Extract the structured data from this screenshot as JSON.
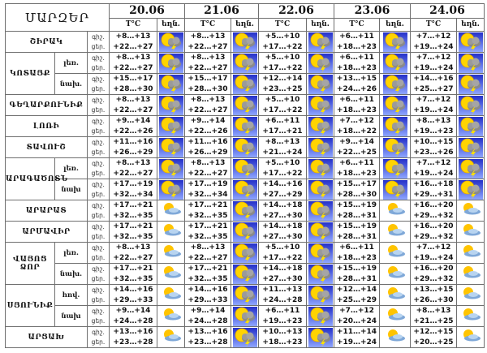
{
  "header": {
    "title": "ՄԱՐԶԵՐ",
    "temp_label": "T°C",
    "weather_label": "եղն.",
    "dates": [
      "20.06",
      "21.06",
      "22.06",
      "23.06",
      "24.06"
    ]
  },
  "time_labels": {
    "night": "գիշ.",
    "day": "ցեր."
  },
  "regions": [
    {
      "name": "ՇԻՐԱԿ",
      "subs": [
        {
          "label": "",
          "icons": [
            "storm",
            "storm",
            "storm",
            "storm",
            "storm"
          ],
          "days": [
            [
              "+8…+13",
              "+22…+27"
            ],
            [
              "+8…+13",
              "+22…+27"
            ],
            [
              "+5…+10",
              "+17…+22"
            ],
            [
              "+6…+11",
              "+18…+23"
            ],
            [
              "+7…+12",
              "+19…+24"
            ]
          ]
        }
      ]
    },
    {
      "name": "ԿՈՏԱՅՔ",
      "subs": [
        {
          "label": "լեռ.",
          "icons": [
            "storm",
            "storm",
            "storm",
            "storm",
            "storm"
          ],
          "days": [
            [
              "+8…+13",
              "+22…+27"
            ],
            [
              "+8…+13",
              "+22…+27"
            ],
            [
              "+5…+10",
              "+17…+22"
            ],
            [
              "+6…+11",
              "+18…+23"
            ],
            [
              "+7…+12",
              "+19…+24"
            ]
          ]
        },
        {
          "label": "նախ.",
          "icons": [
            "storm",
            "storm",
            "storm",
            "storm",
            "storm"
          ],
          "days": [
            [
              "+15…+17",
              "+28…+30"
            ],
            [
              "+15…+17",
              "+28…+30"
            ],
            [
              "+12…+14",
              "+23…+25"
            ],
            [
              "+13…+15",
              "+24…+26"
            ],
            [
              "+14…+16",
              "+25…+27"
            ]
          ]
        }
      ]
    },
    {
      "name": "ԳԵՂԱՐՔՈՒՆԻՔ",
      "subs": [
        {
          "label": "",
          "icons": [
            "storm",
            "storm",
            "storm",
            "storm",
            "storm"
          ],
          "days": [
            [
              "+8…+13",
              "+22…+27"
            ],
            [
              "+8…+13",
              "+22…+27"
            ],
            [
              "+5…+10",
              "+17…+22"
            ],
            [
              "+6…+11",
              "+18…+23"
            ],
            [
              "+7…+12",
              "+19…+24"
            ]
          ]
        }
      ]
    },
    {
      "name": "ԼՈՌԻ",
      "subs": [
        {
          "label": "",
          "icons": [
            "storm",
            "storm",
            "storm",
            "storm",
            "storm"
          ],
          "days": [
            [
              "+9…+14",
              "+22…+26"
            ],
            [
              "+9…+14",
              "+22…+26"
            ],
            [
              "+6…+11",
              "+17…+21"
            ],
            [
              "+7…+12",
              "+18…+22"
            ],
            [
              "+8…+13",
              "+19…+23"
            ]
          ]
        }
      ]
    },
    {
      "name": "ՏԱՎՈՒՇ",
      "subs": [
        {
          "label": "",
          "icons": [
            "storm",
            "storm",
            "storm",
            "storm",
            "storm"
          ],
          "days": [
            [
              "+11…+16",
              "+26…+29"
            ],
            [
              "+11…+16",
              "+26…+29"
            ],
            [
              "+8…+13",
              "+21…+24"
            ],
            [
              "+9…+14",
              "+22…+25"
            ],
            [
              "+10…+15",
              "+23…+26"
            ]
          ]
        }
      ]
    },
    {
      "name": "ԱՐԱԳԱԾՈՏՆ",
      "subs": [
        {
          "label": "լեռ.",
          "icons": [
            "storm",
            "storm",
            "storm",
            "storm",
            "storm"
          ],
          "days": [
            [
              "+8…+13",
              "+22…+27"
            ],
            [
              "+8…+13",
              "+22…+27"
            ],
            [
              "+5…+10",
              "+17…+22"
            ],
            [
              "+6…+11",
              "+18…+23"
            ],
            [
              "+7…+12",
              "+19…+24"
            ]
          ]
        },
        {
          "label": "նախ",
          "icons": [
            "storm",
            "storm",
            "storm",
            "storm",
            "storm"
          ],
          "days": [
            [
              "+17…+19",
              "+32…+34"
            ],
            [
              "+17…+19",
              "+32…+34"
            ],
            [
              "+14…+16",
              "+27…+29"
            ],
            [
              "+15…+17",
              "+28…+30"
            ],
            [
              "+16…+18",
              "+29…+31"
            ]
          ]
        }
      ]
    },
    {
      "name": "ԱՐԱՐԱՏ",
      "subs": [
        {
          "label": "",
          "icons": [
            "cloudy",
            "storm",
            "storm",
            "cloudy",
            "cloudy"
          ],
          "days": [
            [
              "+17…+21",
              "+32…+35"
            ],
            [
              "+17…+21",
              "+32…+35"
            ],
            [
              "+14…+18",
              "+27…+30"
            ],
            [
              "+15…+19",
              "+28…+31"
            ],
            [
              "+16…+20",
              "+29…+32"
            ]
          ]
        }
      ]
    },
    {
      "name": "ԱՐՄԱՎԻՐ",
      "subs": [
        {
          "label": "",
          "icons": [
            "cloudy",
            "storm",
            "storm",
            "cloudy",
            "cloudy"
          ],
          "days": [
            [
              "+17…+21",
              "+32…+35"
            ],
            [
              "+17…+21",
              "+32…+35"
            ],
            [
              "+14…+18",
              "+27…+30"
            ],
            [
              "+15…+19",
              "+28…+31"
            ],
            [
              "+16…+20",
              "+29…+32"
            ]
          ]
        }
      ]
    },
    {
      "name": "ՎԱՅՈՑ ՁՈՐ",
      "subs": [
        {
          "label": "լեռ.",
          "icons": [
            "cloudy",
            "storm",
            "storm",
            "cloudy",
            "cloudy"
          ],
          "days": [
            [
              "+8…+13",
              "+22…+27"
            ],
            [
              "+8…+13",
              "+22…+27"
            ],
            [
              "+5…+10",
              "+17…+22"
            ],
            [
              "+6…+11",
              "+18…+23"
            ],
            [
              "+7…+12",
              "+19…+24"
            ]
          ]
        },
        {
          "label": "նախ.",
          "icons": [
            "cloudy",
            "storm",
            "storm",
            "cloudy",
            "cloudy"
          ],
          "days": [
            [
              "+17…+21",
              "+32…+35"
            ],
            [
              "+17…+21",
              "+32…+35"
            ],
            [
              "+14…+18",
              "+27…+30"
            ],
            [
              "+15…+19",
              "+28…+31"
            ],
            [
              "+16…+20",
              "+29…+32"
            ]
          ]
        }
      ]
    },
    {
      "name": "ՍՅՈՒՆԻՔ",
      "subs": [
        {
          "label": "հով.",
          "icons": [
            "cloudy",
            "storm",
            "storm",
            "cloudy",
            "cloudy"
          ],
          "days": [
            [
              "+14…+16",
              "+29…+33"
            ],
            [
              "+14…+16",
              "+29…+33"
            ],
            [
              "+11…+13",
              "+24…+28"
            ],
            [
              "+12…+14",
              "+25…+29"
            ],
            [
              "+13…+15",
              "+26…+30"
            ]
          ]
        },
        {
          "label": "նախ",
          "icons": [
            "cloudy",
            "storm",
            "storm",
            "cloudy",
            "cloudy"
          ],
          "days": [
            [
              "+9…+14",
              "+24…+28"
            ],
            [
              "+9…+14",
              "+24…+28"
            ],
            [
              "+6…+11",
              "+19…+23"
            ],
            [
              "+7…+12",
              "+20…+24"
            ],
            [
              "+8…+13",
              "+21…+25"
            ]
          ]
        }
      ]
    },
    {
      "name": "ԱՐՑԱԽ",
      "subs": [
        {
          "label": "",
          "icons": [
            "cloudy",
            "storm",
            "storm",
            "cloudy",
            "cloudy"
          ],
          "days": [
            [
              "+13…+16",
              "+23…+28"
            ],
            [
              "+13…+16",
              "+23…+28"
            ],
            [
              "+10…+13",
              "+18…+23"
            ],
            [
              "+11…+14",
              "+19…+24"
            ],
            [
              "+12…+15",
              "+20…+25"
            ]
          ]
        }
      ]
    }
  ]
}
